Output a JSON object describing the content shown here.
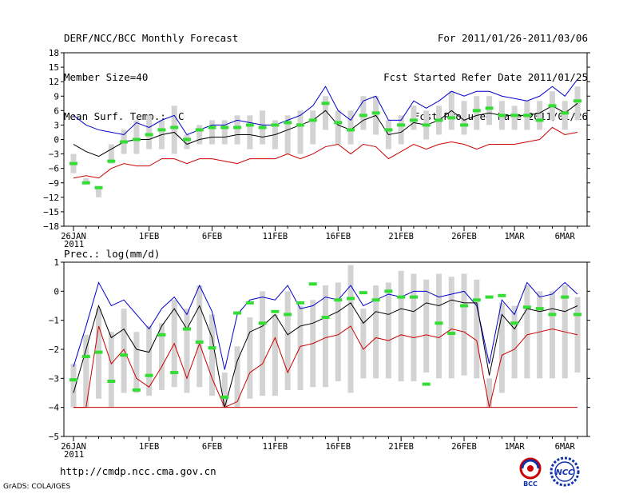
{
  "header": {
    "title": "DERF/NCC/BCC Monthly Forecast",
    "member_size": "Member Size=40",
    "variable": "Mean Surf. Temp.: °C",
    "period": "For 2011/01/26-2011/03/06",
    "started": "Fcst Started Refer Date 2011/01/25",
    "produced": "Fcst Produced Date 2011/01/26"
  },
  "footer": {
    "url": "http://cmdp.ncc.cma.gov.cn",
    "credit": "GrADS: COLA/IGES",
    "logo_left_text": "BCC",
    "logo_right_text": "NCC"
  },
  "colors": {
    "max": "#0000cc",
    "mean": "#000000",
    "min": "#cc0000",
    "box": "#d3d3d3",
    "obs": "#33dd33"
  },
  "chart_data": [
    {
      "type": "line",
      "title": "Mean Surf. Temp.: °C",
      "ylim": [
        -18,
        18
      ],
      "yticks": [
        -18,
        -15,
        -12,
        -9,
        -6,
        -3,
        0,
        3,
        6,
        9,
        12,
        15,
        18
      ],
      "ytick_labels": [
        "−18",
        "−15",
        "−12",
        "−9",
        "−6",
        "−3",
        "0",
        "3",
        "6",
        "9",
        "12",
        "15",
        "18"
      ],
      "x_label_days": [
        0,
        6,
        11,
        16,
        21,
        26,
        31,
        35,
        39
      ],
      "x_labels": [
        "26JAN",
        "1FEB",
        "6FEB",
        "11FEB",
        "16FEB",
        "21FEB",
        "26FEB",
        "1MAR",
        "6MAR"
      ],
      "x_year": "2011",
      "max": [
        5,
        3,
        2,
        1.5,
        1,
        3.5,
        2.5,
        4,
        5,
        1,
        2,
        3,
        3,
        4,
        3.5,
        3,
        3,
        4,
        5,
        7,
        11,
        6,
        4,
        8,
        9,
        4,
        4,
        8,
        6.5,
        8,
        10,
        9,
        10,
        10,
        9,
        8.5,
        8,
        9,
        11,
        9,
        12.5
      ],
      "mean": [
        -1,
        -2.5,
        -3.5,
        -2,
        -0.5,
        0,
        0,
        1,
        1.5,
        -1,
        0,
        0.5,
        0.5,
        1,
        1,
        0.5,
        1,
        2,
        3,
        4,
        6,
        3,
        2,
        4,
        5,
        1,
        1.5,
        3.5,
        3,
        4,
        6,
        4,
        5,
        5.5,
        5,
        5,
        5,
        5.5,
        7,
        5.5,
        7.5
      ],
      "min": [
        -8,
        -7.5,
        -8,
        -6,
        -5,
        -5.5,
        -5.5,
        -4,
        -4,
        -5,
        -4,
        -4,
        -4.5,
        -5,
        -4,
        -4,
        -4,
        -3,
        -4,
        -3,
        -1.5,
        -1,
        -3,
        -1,
        -1.5,
        -4,
        -2.5,
        -1,
        -2,
        -1,
        -0.5,
        -1,
        -2,
        -1,
        -1,
        -1,
        -0.5,
        0,
        2.5,
        1,
        1.5
      ],
      "box_low": [
        -7,
        -9,
        -12,
        -5,
        -3,
        -3,
        -2,
        -2,
        -3,
        -2,
        -1,
        -1,
        -1,
        -1,
        -2,
        -1,
        -2,
        -3,
        -3,
        -1,
        2,
        -1,
        -1,
        2,
        1,
        -2,
        -1,
        2,
        0,
        1,
        2,
        1,
        2,
        3,
        2,
        2,
        2,
        2,
        4,
        2,
        4
      ],
      "box_high": [
        -3,
        -8,
        -10,
        -1,
        2,
        4,
        5,
        4,
        7,
        1,
        3,
        4,
        4,
        5,
        5,
        6,
        4,
        5,
        6,
        6,
        9,
        6,
        6,
        9,
        9,
        4,
        5,
        7,
        6,
        7,
        10,
        8,
        9,
        9,
        8,
        7,
        8,
        8,
        10,
        8,
        11
      ],
      "obs": [
        -5,
        -9,
        -10,
        -4.5,
        -0.5,
        0,
        1,
        2,
        2.5,
        0,
        2,
        2.5,
        2.5,
        2.5,
        3,
        2.5,
        3,
        3.5,
        3,
        4,
        7.5,
        3.5,
        2,
        5,
        5.5,
        2,
        3,
        4,
        3,
        4,
        4.5,
        3,
        6,
        6.5,
        5,
        5,
        5,
        4,
        7,
        5.5,
        8
      ]
    },
    {
      "type": "line",
      "title": "Prec.: log(mm/d)",
      "ylim": [
        -5,
        1
      ],
      "yticks": [
        -5,
        -4,
        -3,
        -2,
        -1,
        0,
        1
      ],
      "ytick_labels": [
        "−5",
        "−4",
        "−3",
        "−2",
        "−1",
        "0",
        "1"
      ],
      "x_label_days": [
        0,
        6,
        11,
        16,
        21,
        26,
        31,
        35,
        39
      ],
      "x_labels": [
        "26JAN",
        "1FEB",
        "6FEB",
        "11FEB",
        "16FEB",
        "21FEB",
        "26FEB",
        "1MAR",
        "6MAR"
      ],
      "x_year": "2011",
      "max": [
        -2.6,
        -1.2,
        0.3,
        -0.5,
        -0.3,
        -0.8,
        -1.3,
        -0.6,
        -0.2,
        -0.8,
        0.2,
        -0.7,
        -2.7,
        -0.8,
        -0.3,
        -0.2,
        -0.3,
        0.2,
        -0.6,
        -0.5,
        -0.2,
        -0.3,
        0.2,
        -0.5,
        -0.3,
        -0.1,
        -0.2,
        0,
        0,
        -0.2,
        -0.1,
        0,
        -0.5,
        -2.5,
        -0.3,
        -0.8,
        0.3,
        -0.2,
        -0.1,
        0.3,
        -0.1
      ],
      "mean": [
        -3.5,
        -2,
        -0.5,
        -1.6,
        -1.3,
        -2,
        -2.1,
        -1.2,
        -0.6,
        -1.3,
        -0.5,
        -1.6,
        -4,
        -2.4,
        -1.4,
        -1.2,
        -0.8,
        -1.5,
        -1.2,
        -1.1,
        -0.9,
        -0.7,
        -0.4,
        -1.1,
        -0.7,
        -0.8,
        -0.6,
        -0.7,
        -0.4,
        -0.5,
        -0.3,
        -0.4,
        -0.4,
        -2.9,
        -0.8,
        -1.3,
        -0.6,
        -0.7,
        -0.6,
        -0.7,
        -0.5
      ],
      "min": [
        -4,
        -4,
        -1.2,
        -2.5,
        -2,
        -3,
        -3.3,
        -2.6,
        -1.8,
        -3,
        -1.8,
        -3,
        -4,
        -3.8,
        -2.8,
        -2.5,
        -1.6,
        -2.8,
        -1.9,
        -1.8,
        -1.6,
        -1.5,
        -1.2,
        -2,
        -1.6,
        -1.7,
        -1.5,
        -1.6,
        -1.5,
        -1.6,
        -1.3,
        -1.4,
        -1.7,
        -4,
        -2.2,
        -2,
        -1.5,
        -1.4,
        -1.3,
        -1.4,
        -1.5
      ],
      "min_floor": -4,
      "box_low": [
        -4,
        -4,
        -3.7,
        -4,
        -3.5,
        -3.5,
        -3.6,
        -3.4,
        -3.3,
        -3.5,
        -3.3,
        -3.6,
        -4,
        -4,
        -3.7,
        -3.6,
        -3.6,
        -3.4,
        -3.4,
        -3.3,
        -3.3,
        -3.1,
        -3.5,
        -3,
        -3,
        -3,
        -3.1,
        -3.1,
        -2.8,
        -3,
        -3,
        -2.9,
        -3,
        -4,
        -3.5,
        -3,
        -3,
        -3,
        -3,
        -3,
        -2.8
      ],
      "box_high": [
        -2.5,
        -1.5,
        -0.6,
        -1.4,
        -0.6,
        -1.4,
        -1.2,
        -1.1,
        -0.3,
        -0.6,
        0.2,
        -0.8,
        -2.8,
        -1.9,
        -0.9,
        0,
        -0.8,
        0,
        -0.5,
        -0.3,
        0.2,
        0.3,
        0.9,
        -0.6,
        0.2,
        0.3,
        0.7,
        0.6,
        0.4,
        0.6,
        0.5,
        0.6,
        0.4,
        -3,
        -0.4,
        -0.5,
        0.2,
        0,
        0,
        0.2,
        -0.2
      ],
      "obs": [
        -3.05,
        -2.25,
        -2.1,
        -3.1,
        -2.2,
        -3.4,
        -2.9,
        -1.5,
        -2.8,
        -1.3,
        -1.75,
        -1.95,
        -3.65,
        -0.75,
        -0.4,
        -1.1,
        -0.7,
        -0.8,
        -0.4,
        0.25,
        -0.9,
        -0.3,
        -0.25,
        -0.05,
        -0.3,
        0,
        -0.2,
        -0.2,
        -3.2,
        -1.1,
        -1.45,
        -0.5,
        -0.3,
        -0.2,
        -0.15,
        -1.1,
        -0.55,
        -0.6,
        -0.8,
        -0.2,
        -0.8
      ],
      "obs_days": [
        0,
        1,
        2,
        3,
        4,
        5,
        6,
        7,
        8,
        9,
        10,
        11,
        12,
        13,
        14,
        15,
        16,
        17,
        18,
        19,
        20,
        21,
        22,
        23,
        24,
        25,
        26,
        27,
        28,
        29,
        30,
        31,
        32,
        33,
        34,
        35,
        36,
        37,
        38,
        39,
        40
      ]
    }
  ]
}
